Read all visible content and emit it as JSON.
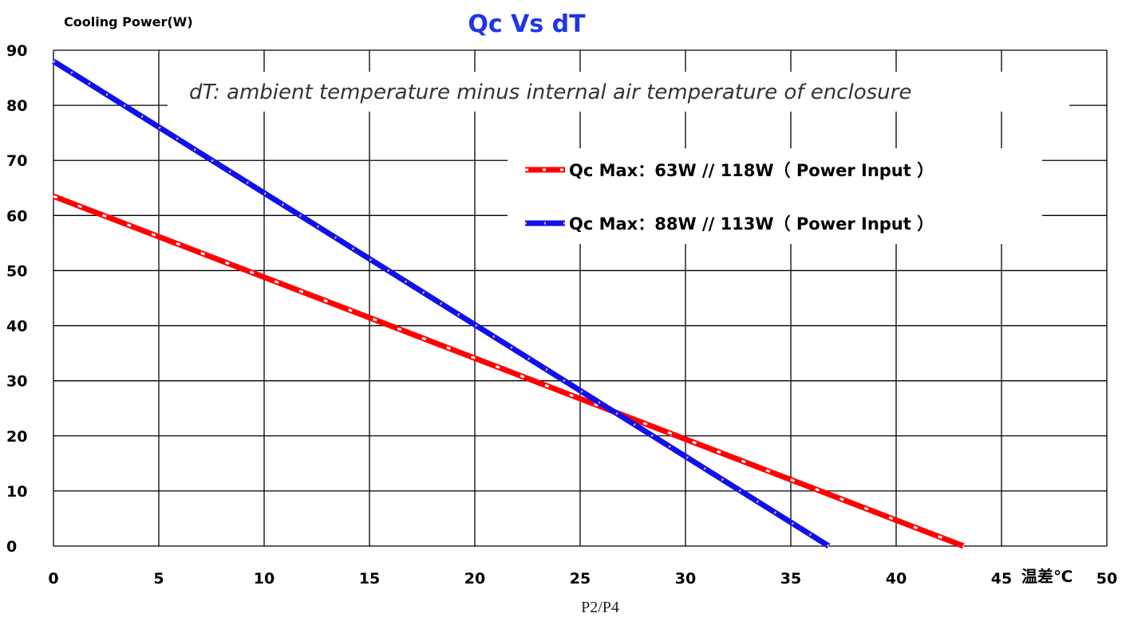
{
  "chart_data": {
    "type": "line",
    "title": "Qc Vs dT",
    "ylabel": "Cooling Power(W)",
    "xlabel": "温差℃",
    "xlim": [
      0,
      50
    ],
    "ylim": [
      0,
      90
    ],
    "x_ticks": [
      "0",
      "5",
      "10",
      "15",
      "20",
      "25",
      "30",
      "35",
      "40",
      "45",
      "50"
    ],
    "y_ticks": [
      "0",
      "10",
      "20",
      "30",
      "40",
      "50",
      "60",
      "70",
      "80",
      "90"
    ],
    "grid": true,
    "annotation": "dT:  ambient temperature minus internal air temperature of enclosure",
    "legend_position": "upper-right",
    "series": [
      {
        "name": "Qc Max：63W //   118W（ Power Input ）",
        "color": "#ff0000",
        "style": "dashed",
        "points": [
          [
            0,
            63.5
          ],
          [
            43.2,
            0
          ]
        ]
      },
      {
        "name": "Qc Max：88W // 113W（ Power Input ）",
        "color": "#1010ee",
        "style": "solid",
        "points": [
          [
            0,
            88
          ],
          [
            36.8,
            0
          ]
        ]
      }
    ]
  },
  "footer": "P2/P4"
}
